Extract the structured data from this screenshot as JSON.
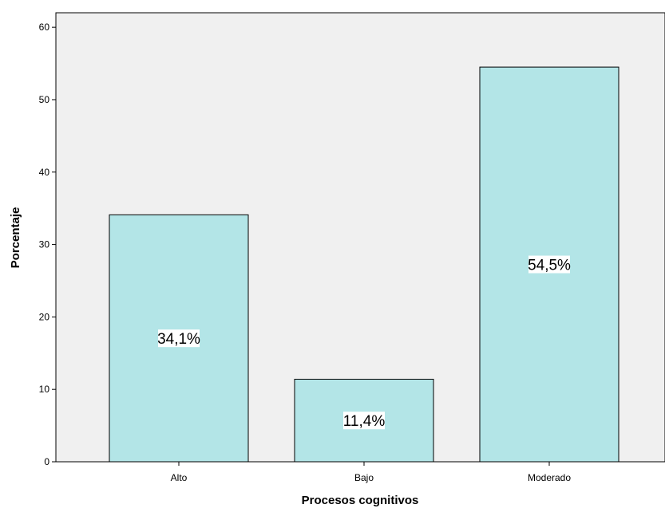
{
  "chart_data": {
    "type": "bar",
    "title": "",
    "xlabel": "Procesos cognitivos",
    "ylabel": "Porcentaje",
    "categories": [
      "Alto",
      "Bajo",
      "Moderado"
    ],
    "values": [
      34.1,
      11.4,
      54.5
    ],
    "data_labels": [
      "34,1%",
      "11,4%",
      "54,5%"
    ],
    "ylim": [
      0,
      62
    ],
    "yticks": [
      0,
      10,
      20,
      30,
      40,
      50,
      60
    ],
    "grid": false,
    "legend": "none",
    "colors": {
      "bar_fill": "#b3e5e7",
      "bar_stroke": "#000000",
      "plot_background": "#f0f0f0",
      "label_background": "#ffffff"
    }
  }
}
